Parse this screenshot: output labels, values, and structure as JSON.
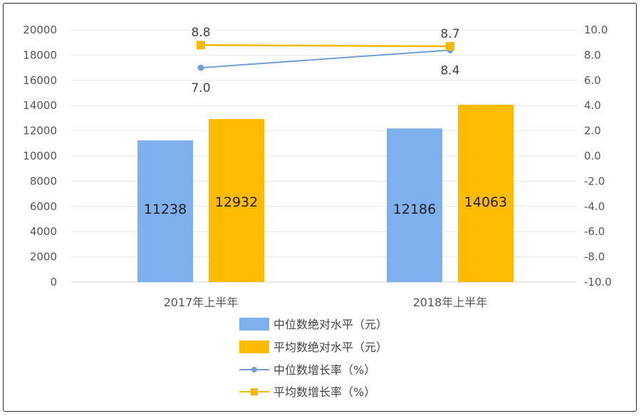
{
  "chart_data": {
    "type": "bar+line",
    "categories": [
      "2017年上半年",
      "2018年上半年"
    ],
    "bar_series": [
      {
        "name": "中位数绝对水平（元）",
        "values": [
          11238,
          12186
        ],
        "color": "#7EB0EE"
      },
      {
        "name": "平均数绝对水平（元）",
        "values": [
          12932,
          14063
        ],
        "color": "#FFBB00"
      }
    ],
    "line_series": [
      {
        "name": "中位数增长率（%）",
        "values": [
          7.0,
          8.4
        ],
        "labels": [
          "7.0",
          "8.4"
        ],
        "color": "#6FA0D8",
        "marker": "circle"
      },
      {
        "name": "平均数增长率（%）",
        "values": [
          8.8,
          8.7
        ],
        "labels": [
          "8.8",
          "8.7"
        ],
        "color": "#F5B800",
        "marker": "square"
      }
    ],
    "y_left": {
      "lim": [
        0,
        20000
      ],
      "ticks": [
        "0",
        "2000",
        "4000",
        "6000",
        "8000",
        "10000",
        "12000",
        "14000",
        "16000",
        "18000",
        "20000"
      ]
    },
    "y_right": {
      "lim": [
        -10,
        10
      ],
      "ticks": [
        "-10.0",
        "-8.0",
        "-6.0",
        "-4.0",
        "-2.0",
        "0.0",
        "2.0",
        "4.0",
        "6.0",
        "8.0",
        "10.0"
      ]
    },
    "grid": true,
    "legend_position": "bottom-center"
  }
}
